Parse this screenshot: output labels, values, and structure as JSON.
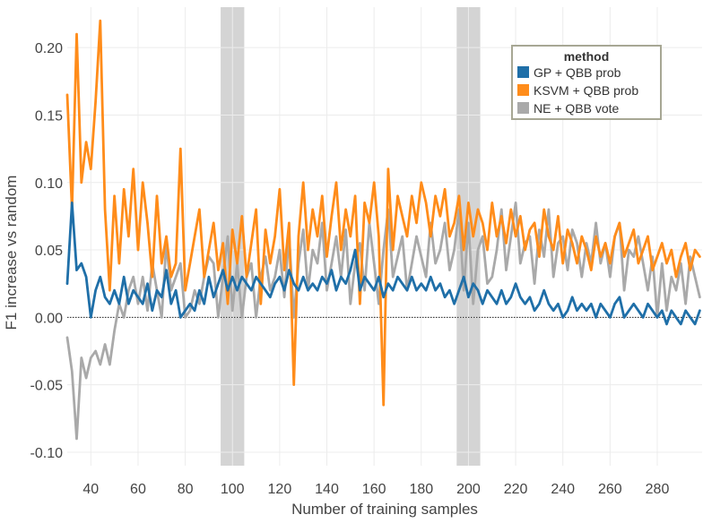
{
  "chart_data": {
    "type": "line",
    "title": "",
    "xlabel": "Number of training samples",
    "ylabel": "F1 increase vs random",
    "xlim": [
      30,
      299
    ],
    "ylim": [
      -0.11,
      0.23
    ],
    "x_ticks": [
      40,
      60,
      80,
      100,
      120,
      140,
      160,
      180,
      200,
      220,
      240,
      260,
      280
    ],
    "x_tick_labels": [
      "40",
      "60",
      "80",
      "100",
      "120",
      "140",
      "160",
      "180",
      "200",
      "220",
      "240",
      "260",
      "280"
    ],
    "y_ticks": [
      -0.1,
      -0.05,
      0.0,
      0.05,
      0.1,
      0.15,
      0.2
    ],
    "y_tick_labels": [
      "-0.10",
      "-0.05",
      "0.00",
      "0.05",
      "0.10",
      "0.15",
      "0.20"
    ],
    "grid": true,
    "zero_line": true,
    "shaded_bands": [
      [
        95,
        105
      ],
      [
        195,
        205
      ]
    ],
    "legend": {
      "title": "method",
      "position": "top-right",
      "entries": [
        "GP + QBB prob",
        "KSVM + QBB prob",
        "NE + QBB vote"
      ]
    },
    "colors": {
      "GP + QBB prob": "#1f6fa8",
      "KSVM + QBB prob": "#ff8c1a",
      "NE + QBB vote": "#a9a9a9",
      "band": "#d4d4d4",
      "grid": "#ececec"
    },
    "series": [
      {
        "name": "NE + QBB vote",
        "x": [
          30,
          32,
          34,
          36,
          38,
          40,
          42,
          44,
          46,
          48,
          50,
          52,
          54,
          56,
          58,
          60,
          62,
          64,
          66,
          68,
          70,
          72,
          74,
          76,
          78,
          80,
          82,
          84,
          86,
          88,
          90,
          92,
          94,
          96,
          98,
          100,
          102,
          104,
          106,
          108,
          110,
          112,
          114,
          116,
          118,
          120,
          122,
          124,
          126,
          128,
          130,
          132,
          134,
          136,
          138,
          140,
          142,
          144,
          146,
          148,
          150,
          152,
          154,
          156,
          158,
          160,
          162,
          164,
          166,
          168,
          170,
          172,
          174,
          176,
          178,
          180,
          182,
          184,
          186,
          188,
          190,
          192,
          194,
          196,
          198,
          200,
          202,
          204,
          206,
          208,
          210,
          212,
          214,
          216,
          218,
          220,
          222,
          224,
          226,
          228,
          230,
          232,
          234,
          236,
          238,
          240,
          242,
          244,
          246,
          248,
          250,
          252,
          254,
          256,
          258,
          260,
          262,
          264,
          266,
          268,
          270,
          272,
          274,
          276,
          278,
          280,
          282,
          284,
          286,
          288,
          290,
          292,
          294,
          296,
          298
        ],
        "y": [
          -0.015,
          -0.04,
          -0.09,
          -0.03,
          -0.045,
          -0.03,
          -0.025,
          -0.035,
          -0.02,
          -0.035,
          -0.01,
          0.01,
          0.0,
          0.02,
          0.03,
          0.01,
          0.03,
          0.005,
          0.04,
          0.02,
          0.0,
          0.055,
          0.02,
          0.03,
          0.04,
          0.0,
          0.005,
          0.02,
          0.01,
          0.03,
          0.045,
          0.04,
          0.0,
          0.03,
          0.06,
          0.005,
          0.04,
          0.0,
          0.03,
          0.04,
          0.0,
          0.03,
          0.045,
          0.02,
          0.03,
          0.05,
          0.015,
          0.06,
          0.0,
          0.04,
          0.065,
          0.02,
          0.05,
          0.04,
          0.07,
          0.02,
          0.04,
          0.06,
          0.03,
          0.065,
          0.01,
          0.04,
          0.055,
          0.02,
          0.07,
          0.04,
          0.01,
          0.05,
          0.08,
          0.03,
          0.045,
          0.06,
          0.02,
          0.04,
          0.06,
          0.045,
          0.03,
          0.07,
          0.04,
          0.05,
          0.07,
          0.035,
          0.05,
          0.08,
          0.02,
          0.07,
          0.01,
          0.05,
          0.06,
          0.025,
          0.03,
          0.05,
          0.08,
          0.035,
          0.06,
          0.085,
          0.04,
          0.055,
          0.06,
          0.025,
          0.065,
          0.045,
          0.08,
          0.03,
          0.055,
          0.06,
          0.035,
          0.065,
          0.055,
          0.03,
          0.055,
          0.04,
          0.07,
          0.04,
          0.055,
          0.03,
          0.06,
          0.07,
          0.02,
          0.05,
          0.045,
          0.06,
          0.04,
          0.02,
          0.045,
          0.0,
          0.04,
          0.005,
          0.03,
          0.02,
          0.04,
          0.01,
          0.045,
          0.03,
          0.015
        ]
      },
      {
        "name": "KSVM + QBB prob",
        "x": [
          30,
          32,
          34,
          36,
          38,
          40,
          42,
          44,
          46,
          48,
          50,
          52,
          54,
          56,
          58,
          60,
          62,
          64,
          66,
          68,
          70,
          72,
          74,
          76,
          78,
          80,
          82,
          84,
          86,
          88,
          90,
          92,
          94,
          96,
          98,
          100,
          102,
          104,
          106,
          108,
          110,
          112,
          114,
          116,
          118,
          120,
          122,
          124,
          126,
          128,
          130,
          132,
          134,
          136,
          138,
          140,
          142,
          144,
          146,
          148,
          150,
          152,
          154,
          156,
          158,
          160,
          162,
          164,
          166,
          168,
          170,
          172,
          174,
          176,
          178,
          180,
          182,
          184,
          186,
          188,
          190,
          192,
          194,
          196,
          198,
          200,
          202,
          204,
          206,
          208,
          210,
          212,
          214,
          216,
          218,
          220,
          222,
          224,
          226,
          228,
          230,
          232,
          234,
          236,
          238,
          240,
          242,
          244,
          246,
          248,
          250,
          252,
          254,
          256,
          258,
          260,
          262,
          264,
          266,
          268,
          270,
          272,
          274,
          276,
          278,
          280,
          282,
          284,
          286,
          288,
          290,
          292,
          294,
          296,
          298
        ],
        "y": [
          0.165,
          0.08,
          0.21,
          0.1,
          0.13,
          0.11,
          0.16,
          0.22,
          0.08,
          0.02,
          0.09,
          0.04,
          0.095,
          0.06,
          0.11,
          0.05,
          0.1,
          0.07,
          0.03,
          0.09,
          0.04,
          0.06,
          0.03,
          0.04,
          0.125,
          0.02,
          0.04,
          0.06,
          0.08,
          0.03,
          0.05,
          0.07,
          0.035,
          0.055,
          0.01,
          0.065,
          0.04,
          0.075,
          0.03,
          0.055,
          0.08,
          0.01,
          0.065,
          0.04,
          0.06,
          0.095,
          0.035,
          0.07,
          -0.05,
          0.06,
          0.1,
          0.05,
          0.08,
          0.06,
          0.09,
          0.045,
          0.075,
          0.1,
          0.05,
          0.08,
          0.06,
          0.09,
          0.01,
          0.085,
          0.07,
          0.1,
          0.06,
          -0.065,
          0.11,
          0.05,
          0.09,
          0.075,
          0.06,
          0.09,
          0.07,
          0.1,
          0.085,
          0.06,
          0.09,
          0.075,
          0.095,
          0.06,
          0.07,
          0.09,
          0.05,
          0.085,
          0.06,
          0.08,
          0.07,
          0.05,
          0.085,
          0.06,
          0.075,
          0.055,
          0.08,
          0.06,
          0.075,
          0.05,
          0.065,
          0.07,
          0.045,
          0.08,
          0.06,
          0.05,
          0.075,
          0.04,
          0.065,
          0.055,
          0.04,
          0.06,
          0.05,
          0.035,
          0.06,
          0.045,
          0.055,
          0.04,
          0.06,
          0.07,
          0.045,
          0.055,
          0.065,
          0.04,
          0.05,
          0.06,
          0.035,
          0.045,
          0.055,
          0.04,
          0.05,
          0.03,
          0.045,
          0.055,
          0.035,
          0.05,
          0.045
        ]
      },
      {
        "name": "GP + QBB prob",
        "x": [
          30,
          32,
          34,
          36,
          38,
          40,
          42,
          44,
          46,
          48,
          50,
          52,
          54,
          56,
          58,
          60,
          62,
          64,
          66,
          68,
          70,
          72,
          74,
          76,
          78,
          80,
          82,
          84,
          86,
          88,
          90,
          92,
          94,
          96,
          98,
          100,
          102,
          104,
          106,
          108,
          110,
          112,
          114,
          116,
          118,
          120,
          122,
          124,
          126,
          128,
          130,
          132,
          134,
          136,
          138,
          140,
          142,
          144,
          146,
          148,
          150,
          152,
          154,
          156,
          158,
          160,
          162,
          164,
          166,
          168,
          170,
          172,
          174,
          176,
          178,
          180,
          182,
          184,
          186,
          188,
          190,
          192,
          194,
          196,
          198,
          200,
          202,
          204,
          206,
          208,
          210,
          212,
          214,
          216,
          218,
          220,
          222,
          224,
          226,
          228,
          230,
          232,
          234,
          236,
          238,
          240,
          242,
          244,
          246,
          248,
          250,
          252,
          254,
          256,
          258,
          260,
          262,
          264,
          266,
          268,
          270,
          272,
          274,
          276,
          278,
          280,
          282,
          284,
          286,
          288,
          290,
          292,
          294,
          296,
          298
        ],
        "y": [
          0.025,
          0.085,
          0.035,
          0.04,
          0.03,
          0.0,
          0.02,
          0.03,
          0.015,
          0.01,
          0.02,
          0.01,
          0.03,
          0.01,
          0.02,
          0.015,
          0.01,
          0.025,
          0.005,
          0.02,
          0.015,
          0.035,
          0.01,
          0.02,
          0.0,
          0.005,
          0.01,
          0.005,
          0.02,
          0.01,
          0.03,
          0.015,
          0.025,
          0.035,
          0.02,
          0.03,
          0.02,
          0.03,
          0.025,
          0.02,
          0.03,
          0.025,
          0.02,
          0.015,
          0.025,
          0.03,
          0.02,
          0.035,
          0.025,
          0.02,
          0.03,
          0.02,
          0.025,
          0.02,
          0.03,
          0.025,
          0.035,
          0.02,
          0.03,
          0.025,
          0.035,
          0.05,
          0.02,
          0.03,
          0.025,
          0.02,
          0.03,
          0.015,
          0.025,
          0.02,
          0.03,
          0.025,
          0.02,
          0.03,
          0.02,
          0.025,
          0.02,
          0.03,
          0.02,
          0.025,
          0.015,
          0.02,
          0.01,
          0.02,
          0.03,
          0.015,
          0.025,
          0.02,
          0.01,
          0.02,
          0.015,
          0.01,
          0.02,
          0.01,
          0.015,
          0.025,
          0.015,
          0.01,
          0.015,
          0.005,
          0.01,
          0.02,
          0.01,
          0.005,
          0.01,
          0.0,
          0.005,
          0.015,
          0.005,
          0.01,
          0.005,
          0.01,
          0.0,
          0.01,
          0.005,
          0.0,
          0.01,
          0.015,
          0.0,
          0.005,
          0.01,
          0.005,
          0.0,
          0.01,
          0.005,
          0.0,
          0.005,
          -0.005,
          0.005,
          0.0,
          -0.005,
          0.005,
          0.0,
          -0.005,
          0.005
        ]
      }
    ]
  }
}
